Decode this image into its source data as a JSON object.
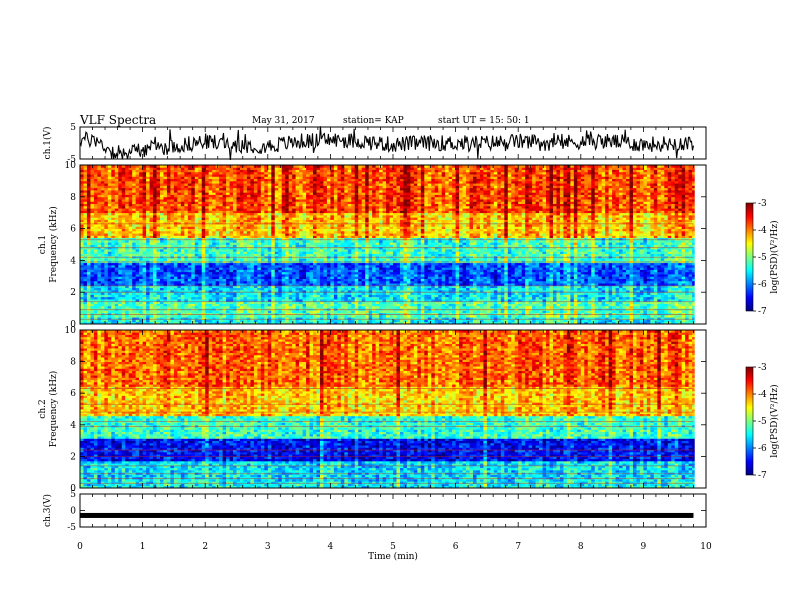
{
  "header": {
    "title": "VLF Spectra",
    "date": "May 31, 2017",
    "station": "station= KAP",
    "start": "start  UT =   15: 50: 1"
  },
  "chart_data": [
    {
      "type": "line",
      "panel": "ch1-waveform",
      "ylabel": "ch.1(V)",
      "ylim": [
        -5,
        5
      ],
      "yticks": [
        "5",
        "-5"
      ],
      "xlim": [
        0,
        10
      ],
      "x": [
        0,
        0.25,
        0.5,
        0.6,
        0.75,
        1.0,
        1.5,
        2.0,
        2.5,
        3.0,
        3.5,
        4.0,
        4.5,
        5.0,
        5.5,
        6.0,
        6.5,
        7.0,
        7.5,
        8.0,
        8.5,
        9.0,
        9.5,
        9.8
      ],
      "values": [
        1.2,
        0.8,
        -2.5,
        -3.5,
        -3.0,
        -2.0,
        -1.0,
        0.5,
        -0.5,
        -1.0,
        0.5,
        1.0,
        0.5,
        -0.5,
        0,
        0,
        0,
        0.5,
        0,
        0.5,
        0.5,
        -0.5,
        0,
        0
      ]
    },
    {
      "type": "heatmap",
      "panel": "ch1-spectrogram",
      "ylabel": "ch.1\nFrequency (kHz)",
      "ylim": [
        0,
        10
      ],
      "yticks": [
        "0",
        "2",
        "4",
        "6",
        "8",
        "10"
      ],
      "xlim": [
        0,
        10
      ],
      "colorbar": {
        "label": "log(PSD)(V²/Hz)",
        "range": [
          -7,
          -3
        ],
        "ticks": [
          "-3",
          "-4",
          "-5",
          "-6",
          "-7"
        ]
      },
      "bands_khz": [
        [
          0,
          0.5,
          -5.5
        ],
        [
          0.5,
          1.5,
          -5.2
        ],
        [
          1.5,
          2.5,
          -5.6
        ],
        [
          2.5,
          3.8,
          -6.2
        ],
        [
          3.8,
          5.5,
          -5.3
        ],
        [
          5.5,
          7.0,
          -4.3
        ],
        [
          7.0,
          10,
          -3.8
        ]
      ]
    },
    {
      "type": "heatmap",
      "panel": "ch2-spectrogram",
      "ylabel": "ch.2\nFrequency (kHz)",
      "ylim": [
        0,
        10
      ],
      "yticks": [
        "0",
        "2",
        "4",
        "6",
        "8",
        "10"
      ],
      "xlim": [
        0,
        10
      ],
      "colorbar": {
        "label": "log(PSD)(V²/Hz)",
        "range": [
          -7,
          -3
        ],
        "ticks": [
          "-3",
          "-4",
          "-5",
          "-6",
          "-7"
        ]
      },
      "bands_khz": [
        [
          0,
          0.5,
          -5.5
        ],
        [
          0.5,
          1.7,
          -5.6
        ],
        [
          1.7,
          3.2,
          -6.5
        ],
        [
          3.2,
          4.6,
          -5.3
        ],
        [
          4.6,
          6.5,
          -4.3
        ],
        [
          6.5,
          10,
          -3.9
        ]
      ]
    },
    {
      "type": "line",
      "panel": "ch3-waveform",
      "ylabel": "ch.3(V)",
      "ylim": [
        -5,
        5
      ],
      "yticks": [
        "5",
        "0",
        "-5"
      ],
      "xlim": [
        0,
        10
      ],
      "xlabel": "Time (min)",
      "xticks": [
        "0",
        "1",
        "2",
        "3",
        "4",
        "5",
        "6",
        "7",
        "8",
        "9",
        "10"
      ],
      "x": [
        0,
        9.8
      ],
      "values": [
        -1.5,
        -1.5
      ]
    }
  ]
}
